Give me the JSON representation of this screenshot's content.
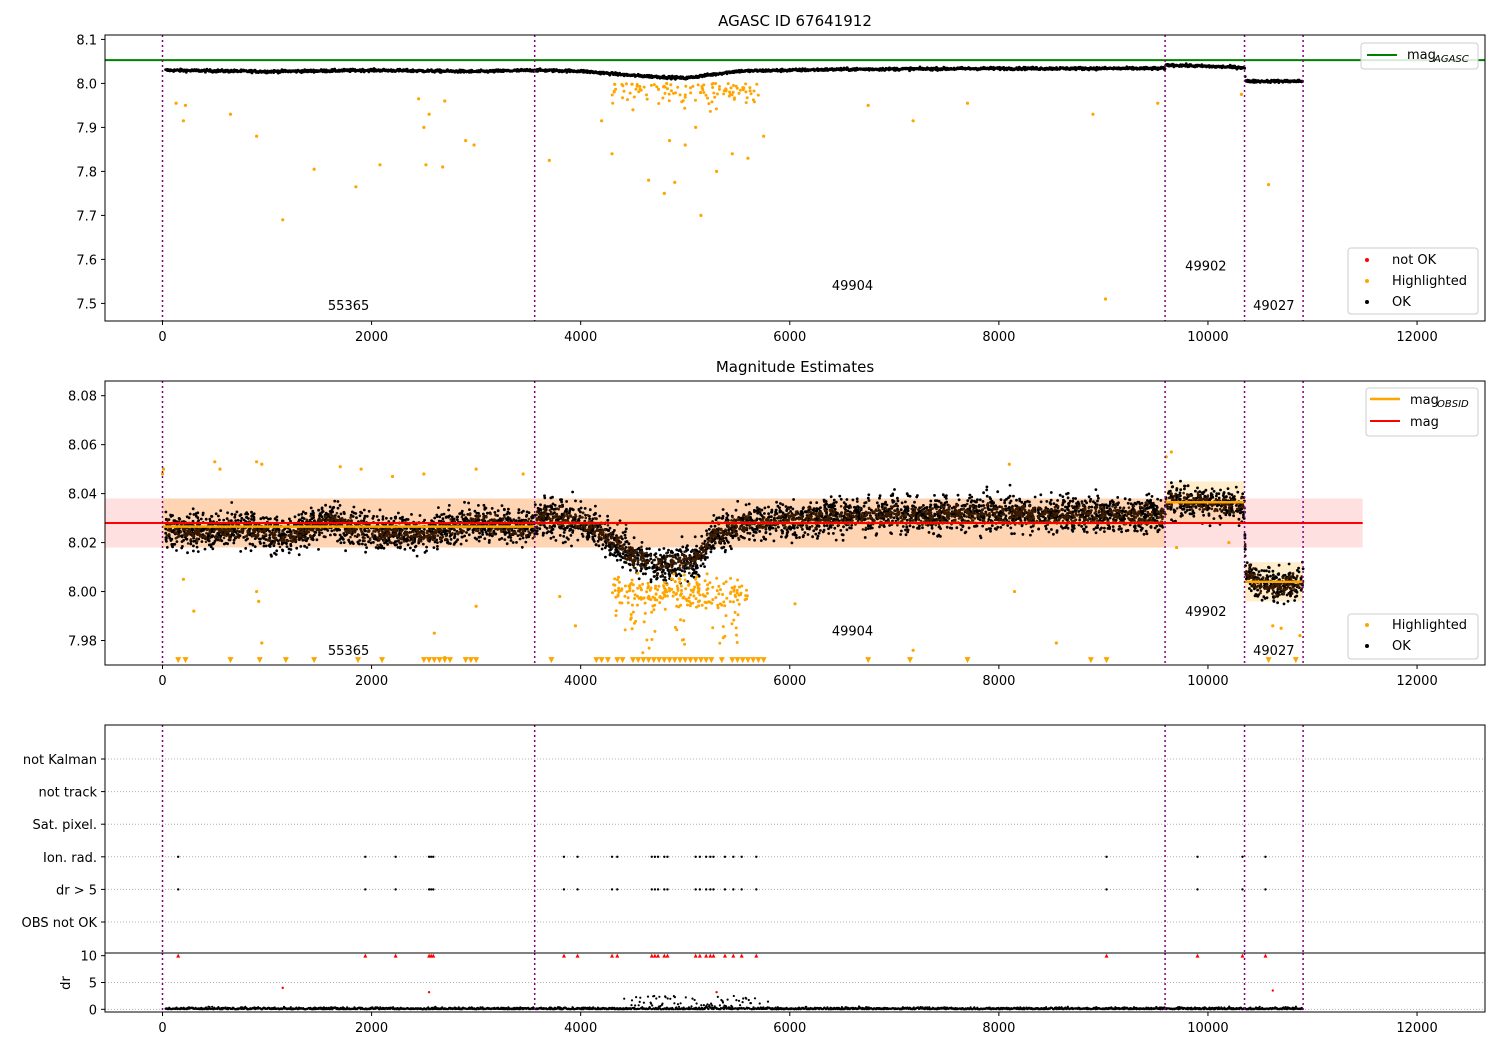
{
  "chart_data": [
    {
      "type": "scatter",
      "title": "AGASC ID 67641912",
      "xlim": [
        -550,
        12650
      ],
      "ylim": [
        7.46,
        8.11
      ],
      "xticks": [
        0,
        2000,
        4000,
        6000,
        8000,
        10000,
        12000
      ],
      "xtick_labels": [
        "0",
        "2000",
        "4000",
        "6000",
        "8000",
        "10000",
        "12000"
      ],
      "yticks": [
        7.5,
        7.6,
        7.7,
        7.8,
        7.9,
        8.0,
        8.1
      ],
      "ytick_labels": [
        "7.5",
        "7.6",
        "7.7",
        "7.8",
        "7.9",
        "8.0",
        "8.1"
      ],
      "obsid_boundaries": [
        0,
        3560,
        9590,
        10350,
        10910
      ],
      "obsid_labels": [
        {
          "text": "55365",
          "x": 1780,
          "y": 7.485
        },
        {
          "text": "49904",
          "x": 6600,
          "y": 7.53
        },
        {
          "text": "49902",
          "x": 9980,
          "y": 7.575
        },
        {
          "text": "49027",
          "x": 10630,
          "y": 7.485
        }
      ],
      "reference_lines": [
        {
          "name": "mag_AGASC",
          "y": 8.053,
          "x_range": [
            -550,
            12650
          ],
          "color": "#008000"
        }
      ],
      "legend_top": [
        {
          "label": "mag",
          "sub": "AGASC",
          "color": "#008000",
          "marker": "line"
        }
      ],
      "legend_bottom": [
        {
          "label": "not OK",
          "color": "#ff0000",
          "marker": "dot"
        },
        {
          "label": "Highlighted",
          "color": "#ffa500",
          "marker": "dot"
        },
        {
          "label": "OK",
          "color": "#000000",
          "marker": "dot"
        }
      ],
      "ok_trend": [
        [
          0,
          8.03
        ],
        [
          1000,
          8.027
        ],
        [
          2000,
          8.03
        ],
        [
          3000,
          8.027
        ],
        [
          3560,
          8.03
        ],
        [
          4000,
          8.028
        ],
        [
          4500,
          8.018
        ],
        [
          5000,
          8.012
        ],
        [
          5500,
          8.028
        ],
        [
          6500,
          8.032
        ],
        [
          8000,
          8.034
        ],
        [
          9590,
          8.034
        ],
        [
          9600,
          8.042
        ],
        [
          10350,
          8.036
        ],
        [
          10360,
          8.005
        ],
        [
          10910,
          8.005
        ]
      ],
      "ok_scatter": 0.006,
      "highlighted_points": [
        [
          130,
          7.955
        ],
        [
          200,
          7.915
        ],
        [
          220,
          7.95
        ],
        [
          650,
          7.93
        ],
        [
          900,
          7.88
        ],
        [
          1150,
          7.69
        ],
        [
          1450,
          7.805
        ],
        [
          1850,
          7.765
        ],
        [
          2080,
          7.815
        ],
        [
          2450,
          7.965
        ],
        [
          2500,
          7.9
        ],
        [
          2520,
          7.815
        ],
        [
          2550,
          7.93
        ],
        [
          2680,
          7.81
        ],
        [
          2700,
          7.96
        ],
        [
          2900,
          7.87
        ],
        [
          2980,
          7.86
        ],
        [
          3700,
          7.825
        ],
        [
          4200,
          7.915
        ],
        [
          4300,
          7.84
        ],
        [
          4500,
          7.94
        ],
        [
          4650,
          7.78
        ],
        [
          4800,
          7.75
        ],
        [
          4850,
          7.87
        ],
        [
          4900,
          7.775
        ],
        [
          5000,
          7.86
        ],
        [
          5100,
          7.9
        ],
        [
          5150,
          7.7
        ],
        [
          5300,
          7.8
        ],
        [
          5450,
          7.84
        ],
        [
          5600,
          7.83
        ],
        [
          5750,
          7.88
        ],
        [
          6750,
          7.95
        ],
        [
          7180,
          7.915
        ],
        [
          7700,
          7.955
        ],
        [
          8900,
          7.93
        ],
        [
          9020,
          7.51
        ],
        [
          9520,
          7.955
        ],
        [
          10320,
          7.975
        ],
        [
          10580,
          7.77
        ]
      ]
    },
    {
      "type": "scatter",
      "title": "Magnitude Estimates",
      "xlim": [
        -550,
        12650
      ],
      "ylim": [
        7.97,
        8.086
      ],
      "xticks": [
        0,
        2000,
        4000,
        6000,
        8000,
        10000,
        12000
      ],
      "xtick_labels": [
        "0",
        "2000",
        "4000",
        "6000",
        "8000",
        "10000",
        "12000"
      ],
      "yticks": [
        7.98,
        8.0,
        8.02,
        8.04,
        8.06,
        8.08
      ],
      "ytick_labels": [
        "7.98",
        "8.00",
        "8.02",
        "8.04",
        "8.06",
        "8.08"
      ],
      "obsid_boundaries": [
        0,
        3560,
        9590,
        10350,
        10910
      ],
      "obsid_labels": [
        {
          "text": "55365",
          "x": 1780,
          "y": 7.974
        },
        {
          "text": "49904",
          "x": 6600,
          "y": 7.982
        },
        {
          "text": "49902",
          "x": 9980,
          "y": 7.99
        },
        {
          "text": "49027",
          "x": 10630,
          "y": 7.974
        }
      ],
      "mag": {
        "y": 8.028,
        "band": [
          8.018,
          8.038
        ],
        "x_range": [
          -550,
          11480
        ],
        "color": "#ff0000"
      },
      "mag_obsid": [
        {
          "x": [
            0,
            3560
          ],
          "y": 8.0265,
          "band": [
            8.018,
            8.038
          ]
        },
        {
          "x": [
            3560,
            9590
          ],
          "y": 8.028,
          "band": [
            8.018,
            8.038
          ]
        },
        {
          "x": [
            9590,
            10350
          ],
          "y": 8.0365,
          "band": [
            8.028,
            8.045
          ]
        },
        {
          "x": [
            10350,
            10910
          ],
          "y": 8.004,
          "band": [
            7.996,
            8.012
          ]
        }
      ],
      "legend_top": [
        {
          "label": "mag",
          "sub": "OBSID",
          "color": "#ffa500",
          "marker": "line"
        },
        {
          "label": "mag",
          "sub": "",
          "color": "#ff0000",
          "marker": "line"
        }
      ],
      "legend_bottom": [
        {
          "label": "Highlighted",
          "color": "#ffa500",
          "marker": "dot"
        },
        {
          "label": "OK",
          "color": "#000000",
          "marker": "dot"
        }
      ],
      "ok_trend": [
        [
          0,
          8.026
        ],
        [
          400,
          8.024
        ],
        [
          800,
          8.026
        ],
        [
          1200,
          8.022
        ],
        [
          1600,
          8.029
        ],
        [
          2000,
          8.024
        ],
        [
          2500,
          8.024
        ],
        [
          3000,
          8.028
        ],
        [
          3560,
          8.026
        ],
        [
          3600,
          8.031
        ],
        [
          4000,
          8.029
        ],
        [
          4300,
          8.022
        ],
        [
          4500,
          8.014
        ],
        [
          4800,
          8.011
        ],
        [
          5100,
          8.013
        ],
        [
          5300,
          8.024
        ],
        [
          5600,
          8.028
        ],
        [
          6500,
          8.031
        ],
        [
          8000,
          8.032
        ],
        [
          9590,
          8.031
        ],
        [
          9600,
          8.038
        ],
        [
          10000,
          8.036
        ],
        [
          10350,
          8.035
        ],
        [
          10360,
          8.008
        ],
        [
          10500,
          8.003
        ],
        [
          10700,
          8.002
        ],
        [
          10910,
          8.004
        ]
      ],
      "ok_scatter": 0.0075,
      "highlighted_floor": 7.972,
      "highlighted_points": [
        [
          0,
          8.048
        ],
        [
          10,
          8.05
        ],
        [
          500,
          8.053
        ],
        [
          550,
          8.05
        ],
        [
          900,
          8.053
        ],
        [
          950,
          8.052
        ],
        [
          1700,
          8.051
        ],
        [
          1900,
          8.05
        ],
        [
          2200,
          8.047
        ],
        [
          2500,
          8.048
        ],
        [
          3000,
          8.05
        ],
        [
          3450,
          8.048
        ],
        [
          9600,
          8.055
        ],
        [
          9650,
          8.057
        ],
        [
          8100,
          8.052
        ],
        [
          200,
          8.005
        ],
        [
          300,
          7.992
        ],
        [
          900,
          8.0
        ],
        [
          920,
          7.996
        ],
        [
          950,
          7.979
        ],
        [
          2600,
          7.983
        ],
        [
          2700,
          7.973
        ],
        [
          3000,
          7.994
        ],
        [
          3800,
          7.998
        ],
        [
          3950,
          7.986
        ],
        [
          6050,
          7.995
        ],
        [
          7180,
          7.976
        ],
        [
          8150,
          8.0
        ],
        [
          8550,
          7.979
        ],
        [
          9700,
          8.018
        ],
        [
          10200,
          8.02
        ],
        [
          10620,
          7.986
        ],
        [
          10700,
          7.985
        ],
        [
          10880,
          7.982
        ]
      ],
      "highlighted_cluster": {
        "x_range": [
          4300,
          5600
        ],
        "y_range": [
          7.975,
          8.012
        ]
      }
    },
    {
      "type": "scatter",
      "title": "",
      "xlim": [
        -550,
        12650
      ],
      "xticks": [
        0,
        2000,
        4000,
        6000,
        8000,
        10000,
        12000
      ],
      "xtick_labels": [
        "0",
        "2000",
        "4000",
        "6000",
        "8000",
        "10000",
        "12000"
      ],
      "flag_rows": [
        "not Kalman",
        "not track",
        "Sat. pixel.",
        "Ion. rad.",
        "dr > 5",
        "OBS not OK"
      ],
      "obsid_boundaries": [
        0,
        3560,
        9590,
        10350,
        10910
      ],
      "flagged_times": [
        150,
        1940,
        2230,
        2550,
        2570,
        2590,
        3840,
        3970,
        4300,
        4350,
        4680,
        4710,
        4740,
        4800,
        4830,
        5100,
        5140,
        5200,
        5240,
        5270,
        5380,
        5460,
        5540,
        5680,
        9030,
        9900,
        10330,
        10550
      ],
      "dr_ylabel": "dr",
      "dr_ylim": [
        0,
        10
      ],
      "dr_yticks": [
        0,
        5,
        10
      ],
      "dr_ytick_labels": [
        "0",
        "5",
        "10"
      ],
      "dr_capped_value": 10,
      "dr_extra_points": [
        [
          1150,
          4.0
        ],
        [
          2550,
          3.2
        ],
        [
          5300,
          3.2
        ],
        [
          10620,
          3.5
        ]
      ]
    }
  ]
}
